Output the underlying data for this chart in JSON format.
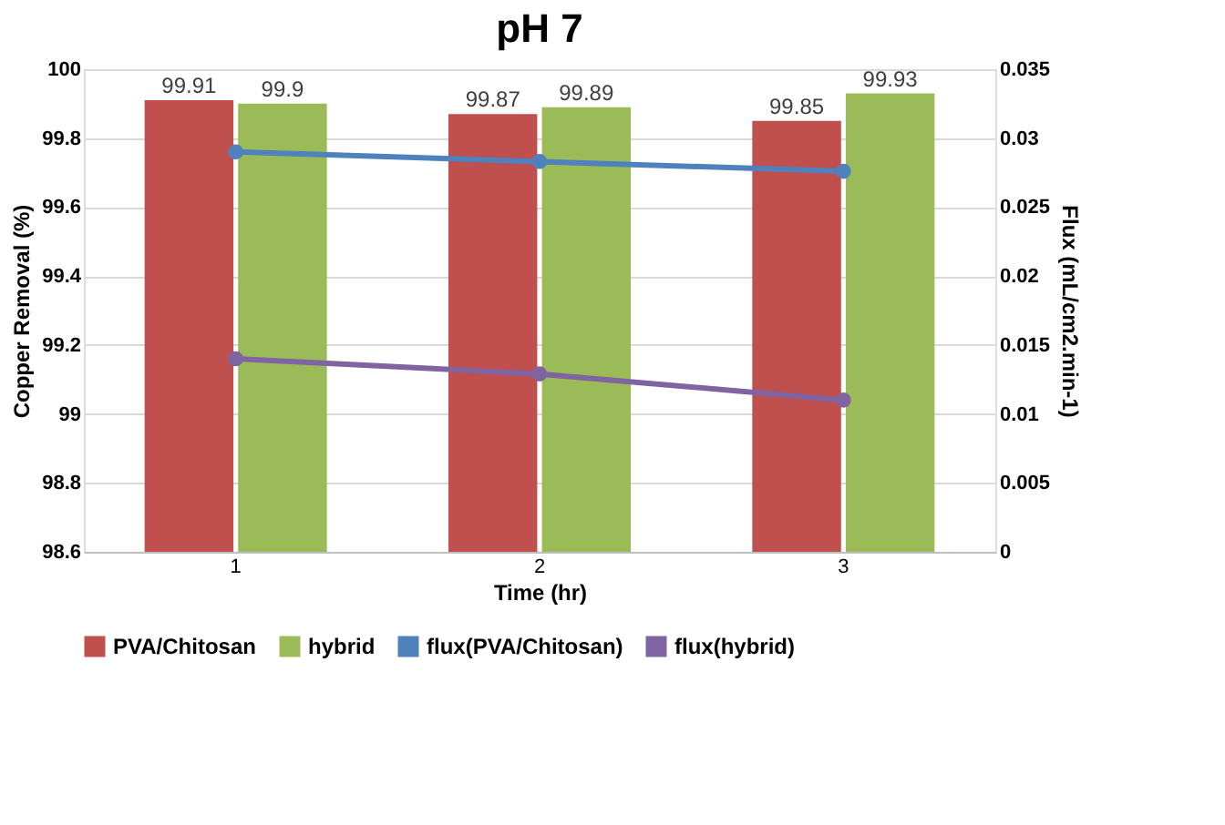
{
  "chart_data": {
    "type": "bar",
    "title": "pH 7",
    "xlabel": "Time (hr)",
    "ylabel": "Copper Removal (%)",
    "y2label": "Flux  (mL/cm2.min-1)",
    "categories": [
      "1",
      "2",
      "3"
    ],
    "ylim": [
      98.6,
      100
    ],
    "yticks": [
      98.6,
      98.8,
      99,
      99.2,
      99.4,
      99.6,
      99.8,
      100
    ],
    "y2lim": [
      0,
      0.035
    ],
    "y2ticks": [
      0,
      0.005,
      0.01,
      0.015,
      0.02,
      0.025,
      0.03,
      0.035
    ],
    "grid": "y",
    "legend": "bottom",
    "series": [
      {
        "name": "PVA/Chitosan",
        "color": "#c0504d",
        "values": [
          99.91,
          99.87,
          99.85
        ],
        "value_labels": [
          "99.91",
          "99.87",
          "99.85"
        ]
      },
      {
        "name": "hybrid",
        "color": "#9bbb59",
        "values": [
          99.9,
          99.89,
          99.93
        ],
        "value_labels": [
          "99.9",
          "99.89",
          "99.93"
        ]
      },
      {
        "name": "flux(PVA/Chitosan)",
        "type": "line",
        "axis": "y2",
        "marker": "circle",
        "color": "#4f81bd",
        "values": [
          0.029,
          0.0283,
          0.0276
        ]
      },
      {
        "name": "flux(hybrid)",
        "type": "line",
        "axis": "y2",
        "marker": "circle",
        "color": "#8064a2",
        "values": [
          0.014,
          0.0129,
          0.011
        ]
      }
    ]
  }
}
